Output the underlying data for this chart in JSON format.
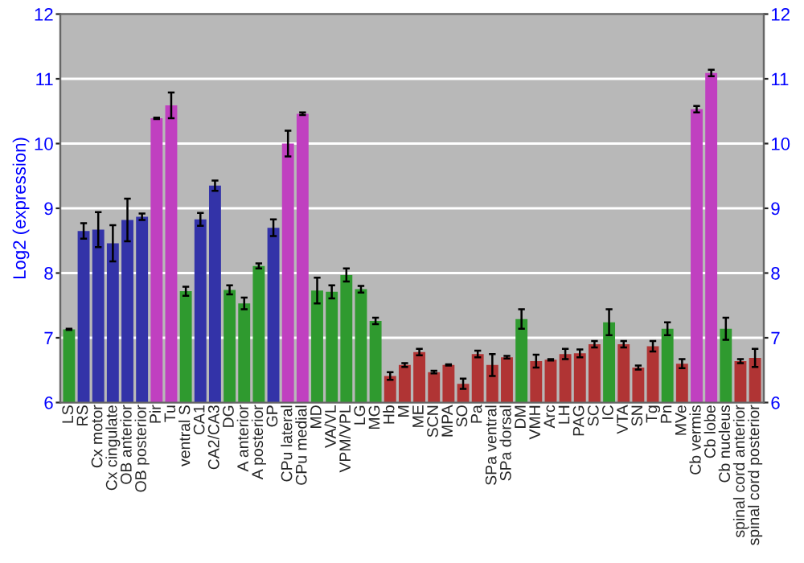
{
  "chart_data": {
    "type": "bar",
    "ylabel": "Log2 (expression)",
    "categories": [
      "LS",
      "RS",
      "Cx motor",
      "Cx cingulate",
      "OB anterior",
      "OB posterior",
      "Pir",
      "Tu",
      "ventral S",
      "CA1",
      "CA2/CA3",
      "DG",
      "A anterior",
      "A posterior",
      "GP",
      "CPu lateral",
      "CPu medial",
      "MD",
      "VA/VL",
      "VPM/VPL",
      "LG",
      "MG",
      "Hb",
      "M",
      "ME",
      "SCN",
      "MPA",
      "SO",
      "Pa",
      "SPa ventral",
      "SPa dorsal",
      "DM",
      "VMH",
      "Arc",
      "LH",
      "PAG",
      "SC",
      "IC",
      "VTA",
      "SN",
      "Tg",
      "Pn",
      "MVe",
      "Cb vermis",
      "Cb lobe",
      "Cb nucleus",
      "spinal cord anterior",
      "spinal cord posterior"
    ],
    "values": [
      7.13,
      8.65,
      8.67,
      8.46,
      8.82,
      8.87,
      10.39,
      10.59,
      7.72,
      8.83,
      9.35,
      7.74,
      7.53,
      8.11,
      8.7,
      10.0,
      10.46,
      7.73,
      7.71,
      7.97,
      7.75,
      7.26,
      6.41,
      6.58,
      6.78,
      6.47,
      6.58,
      6.29,
      6.75,
      6.58,
      6.7,
      7.29,
      6.64,
      6.66,
      6.75,
      6.76,
      6.9,
      7.24,
      6.9,
      6.54,
      6.87,
      7.14,
      6.6,
      10.53,
      11.09,
      7.14,
      6.64,
      6.69
    ],
    "errors": [
      0.01,
      0.12,
      0.27,
      0.28,
      0.33,
      0.05,
      0.01,
      0.2,
      0.07,
      0.1,
      0.08,
      0.07,
      0.09,
      0.04,
      0.13,
      0.2,
      0.02,
      0.2,
      0.1,
      0.1,
      0.05,
      0.05,
      0.06,
      0.03,
      0.05,
      0.02,
      0.01,
      0.08,
      0.05,
      0.17,
      0.02,
      0.15,
      0.1,
      0.01,
      0.08,
      0.06,
      0.05,
      0.2,
      0.05,
      0.03,
      0.08,
      0.1,
      0.07,
      0.05,
      0.05,
      0.17,
      0.03,
      0.14
    ],
    "colors": [
      "#2f9a2f",
      "#3333a8",
      "#3333a8",
      "#3333a8",
      "#3333a8",
      "#3333a8",
      "#c040c0",
      "#c040c0",
      "#2f9a2f",
      "#3333a8",
      "#3333a8",
      "#2f9a2f",
      "#2f9a2f",
      "#2f9a2f",
      "#3333a8",
      "#c040c0",
      "#c040c0",
      "#2f9a2f",
      "#2f9a2f",
      "#2f9a2f",
      "#2f9a2f",
      "#2f9a2f",
      "#b03434",
      "#b03434",
      "#b03434",
      "#b03434",
      "#b03434",
      "#b03434",
      "#b03434",
      "#b03434",
      "#b03434",
      "#2f9a2f",
      "#b03434",
      "#b03434",
      "#b03434",
      "#b03434",
      "#b03434",
      "#2f9a2f",
      "#b03434",
      "#b03434",
      "#b03434",
      "#2f9a2f",
      "#b03434",
      "#c040c0",
      "#c040c0",
      "#2f9a2f",
      "#b03434",
      "#b03434"
    ],
    "ylim": [
      6,
      12
    ],
    "yticks": [
      6,
      7,
      8,
      9,
      10,
      11,
      12
    ],
    "y2lim": [
      6,
      12
    ],
    "y2ticks": [
      6,
      7,
      8,
      9,
      10,
      11,
      12
    ],
    "grid": "y"
  }
}
